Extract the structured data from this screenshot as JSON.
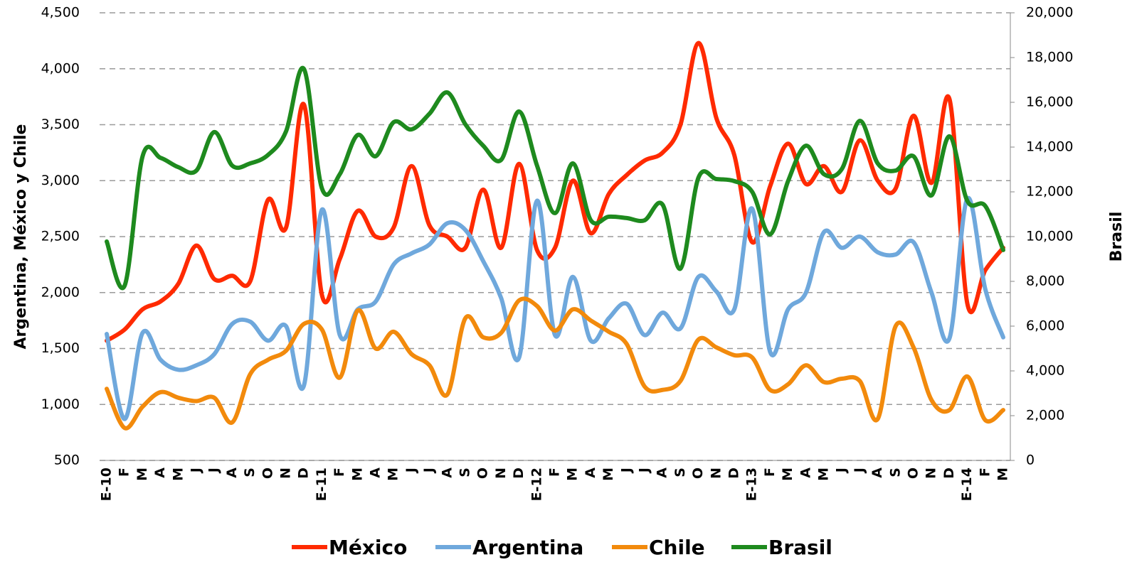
{
  "chart_data": {
    "type": "line",
    "y_label": "Argentina, México y Chile",
    "y2_label": "Brasil",
    "categories": [
      "E-10",
      "F",
      "M",
      "A",
      "M",
      "J",
      "J",
      "A",
      "S",
      "O",
      "N",
      "D",
      "E-11",
      "F",
      "M",
      "A",
      "M",
      "J",
      "J",
      "A",
      "S",
      "O",
      "N",
      "D",
      "E-12",
      "F",
      "M",
      "A",
      "M",
      "J",
      "J",
      "A",
      "S",
      "O",
      "N",
      "D",
      "E-13",
      "F",
      "M",
      "A",
      "M",
      "J",
      "J",
      "A",
      "S",
      "O",
      "N",
      "D",
      "E-14",
      "F",
      "M"
    ],
    "ylim": [
      500,
      4500
    ],
    "yticks": [
      500,
      {
        "value": 1000,
        "label": "1,000"
      },
      {
        "value": 1500,
        "label": "1,500"
      },
      {
        "value": 2000,
        "label": "2,000"
      },
      {
        "value": 2500,
        "label": "2,500"
      },
      {
        "value": 3000,
        "label": "3,000"
      },
      {
        "value": 3500,
        "label": "3,500"
      },
      {
        "value": 4000,
        "label": "4,000"
      },
      {
        "value": 4500,
        "label": "4,500"
      }
    ],
    "y2lim": [
      0,
      20000
    ],
    "y2ticks": [
      0,
      {
        "value": 2000,
        "label": "2,000"
      },
      {
        "value": 4000,
        "label": "4,000"
      },
      {
        "value": 6000,
        "label": "6,000"
      },
      {
        "value": 8000,
        "label": "8,000"
      },
      {
        "value": 10000,
        "label": "10,000"
      },
      {
        "value": 12000,
        "label": "12,000"
      },
      {
        "value": 14000,
        "label": "14,000"
      },
      {
        "value": 16000,
        "label": "16,000"
      },
      {
        "value": 18000,
        "label": "18,000"
      },
      {
        "value": 20000,
        "label": "20,000"
      }
    ],
    "grid": true,
    "legend": "bottom",
    "series": [
      {
        "name": "México",
        "color": "#ff2a00",
        "values": [
          1570,
          1670,
          1850,
          1920,
          2080,
          2420,
          2120,
          2150,
          2100,
          2830,
          2580,
          3680,
          1980,
          2300,
          2730,
          2500,
          2580,
          3130,
          2600,
          2500,
          2400,
          2920,
          2400,
          3150,
          2380,
          2400,
          3000,
          2530,
          2880,
          3050,
          3180,
          3250,
          3500,
          4230,
          3560,
          3230,
          2450,
          2950,
          3330,
          2970,
          3130,
          2900,
          3360,
          3000,
          2930,
          3580,
          2980,
          3730,
          1900,
          2200,
          2400
        ]
      },
      {
        "name": "Argentina",
        "color": "#6fa8dc",
        "values": [
          1630,
          870,
          1640,
          1400,
          1310,
          1350,
          1450,
          1720,
          1740,
          1570,
          1700,
          1170,
          2740,
          1620,
          1850,
          1920,
          2250,
          2350,
          2430,
          2620,
          2560,
          2280,
          1950,
          1420,
          2820,
          1620,
          2140,
          1570,
          1770,
          1900,
          1620,
          1820,
          1680,
          2140,
          2010,
          1850,
          2750,
          1470,
          1850,
          2000,
          2540,
          2400,
          2500,
          2360,
          2340,
          2450,
          2000,
          1590,
          2840,
          2030,
          1600
        ]
      },
      {
        "name": "Chile",
        "color": "#f28a0c",
        "values": [
          1140,
          790,
          980,
          1110,
          1060,
          1030,
          1060,
          840,
          1270,
          1400,
          1480,
          1720,
          1670,
          1240,
          1840,
          1500,
          1650,
          1450,
          1350,
          1090,
          1770,
          1600,
          1640,
          1930,
          1880,
          1660,
          1850,
          1750,
          1650,
          1540,
          1160,
          1130,
          1210,
          1580,
          1510,
          1440,
          1420,
          1130,
          1180,
          1350,
          1200,
          1230,
          1210,
          870,
          1700,
          1510,
          1040,
          950,
          1250,
          860,
          950
        ]
      },
      {
        "name": "Brasil",
        "color": "#1e8a1e",
        "axis": "y2",
        "values": [
          9780,
          7810,
          13590,
          13520,
          13100,
          12950,
          14670,
          13170,
          13270,
          13650,
          14700,
          17490,
          12160,
          12790,
          14540,
          13590,
          15110,
          14790,
          15490,
          16440,
          15020,
          14060,
          13430,
          15590,
          13170,
          11050,
          13270,
          10730,
          10890,
          10830,
          10730,
          11430,
          8570,
          12630,
          12570,
          12480,
          12000,
          10100,
          12480,
          14060,
          12790,
          13020,
          15170,
          13270,
          12950,
          13590,
          11840,
          14480,
          11590,
          11370,
          9400
        ]
      }
    ]
  }
}
